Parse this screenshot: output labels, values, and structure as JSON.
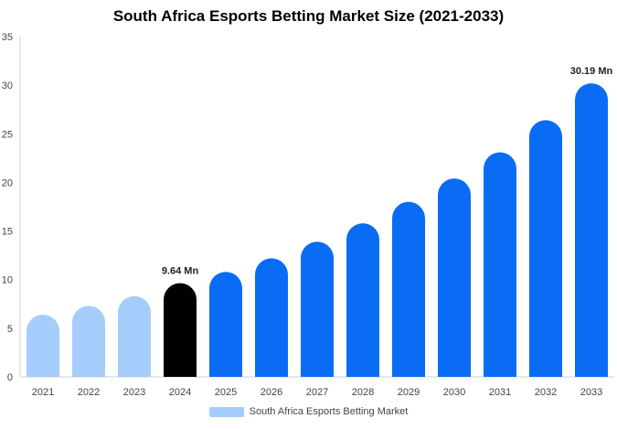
{
  "chart_data": {
    "type": "bar",
    "title": "South Africa Esports Betting Market Size (2021-2033)",
    "categories": [
      "2021",
      "2022",
      "2023",
      "2024",
      "2025",
      "2026",
      "2027",
      "2028",
      "2029",
      "2030",
      "2031",
      "2032",
      "2033"
    ],
    "series": [
      {
        "name": "South Africa Esports Betting Market",
        "values": [
          6.4,
          7.3,
          8.3,
          9.64,
          10.8,
          12.2,
          13.9,
          15.8,
          18.0,
          20.4,
          23.1,
          26.4,
          30.19
        ]
      }
    ],
    "data_labels": [
      {
        "category": "2024",
        "text": "9.64 Mn"
      },
      {
        "category": "2033",
        "text": "30.19 Mn"
      }
    ],
    "ylim": [
      0,
      35
    ],
    "yticks": [
      0,
      5,
      10,
      15,
      20,
      25,
      30,
      35
    ],
    "grid": false,
    "legend_position": "bottom",
    "colors": {
      "historical": "#a5cdfb",
      "current": "#000000",
      "forecast": "#0a6cf5",
      "legend": "#a5cdfb"
    },
    "bar_color_groups": [
      "historical",
      "historical",
      "historical",
      "current",
      "forecast",
      "forecast",
      "forecast",
      "forecast",
      "forecast",
      "forecast",
      "forecast",
      "forecast",
      "forecast"
    ]
  }
}
